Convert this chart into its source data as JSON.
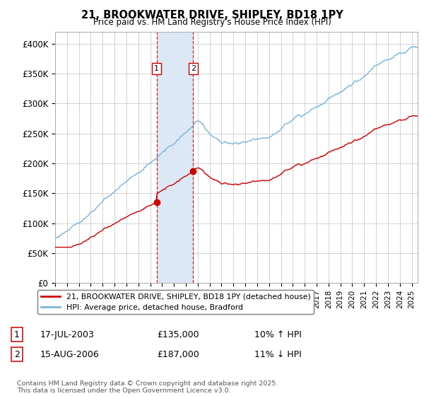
{
  "title": "21, BROOKWATER DRIVE, SHIPLEY, BD18 1PY",
  "subtitle": "Price paid vs. HM Land Registry's House Price Index (HPI)",
  "ylabel_ticks": [
    "£0",
    "£50K",
    "£100K",
    "£150K",
    "£200K",
    "£250K",
    "£300K",
    "£350K",
    "£400K"
  ],
  "ytick_vals": [
    0,
    50000,
    100000,
    150000,
    200000,
    250000,
    300000,
    350000,
    400000
  ],
  "ylim": [
    0,
    420000
  ],
  "xlim_start": 1995.0,
  "xlim_end": 2025.5,
  "legend_line1": "21, BROOKWATER DRIVE, SHIPLEY, BD18 1PY (detached house)",
  "legend_line2": "HPI: Average price, detached house, Bradford",
  "transaction1_label": "1",
  "transaction1_date": "17-JUL-2003",
  "transaction1_price": "£135,000",
  "transaction1_hpi": "10% ↑ HPI",
  "transaction1_x": 2003.54,
  "transaction1_price_val": 135000,
  "transaction2_label": "2",
  "transaction2_date": "15-AUG-2006",
  "transaction2_price": "£187,000",
  "transaction2_hpi": "11% ↓ HPI",
  "transaction2_x": 2006.62,
  "transaction2_price_val": 187000,
  "hpi_color": "#7ab4d8",
  "price_color": "#cc0000",
  "shade_color": "#dce8f5",
  "marker_color": "#cc0000",
  "footnote": "Contains HM Land Registry data © Crown copyright and database right 2025.\nThis data is licensed under the Open Government Licence v3.0.",
  "background_color": "#ffffff",
  "grid_color": "#cccccc"
}
